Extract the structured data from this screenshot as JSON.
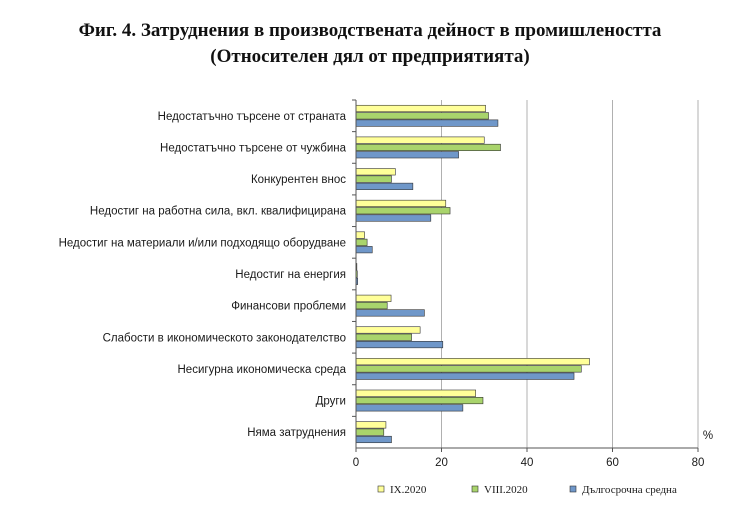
{
  "title": {
    "line1": "Фиг. 4. Затруднения в производствената дейност в промишлеността",
    "line2": "(Относителен дял от предприятията)"
  },
  "colors": {
    "s1": "#ffff99",
    "s2": "#a9d46c",
    "s3": "#6f97c9",
    "stroke": "#333333",
    "grid": "#b0b0b0"
  },
  "chart_data": {
    "type": "bar",
    "orientation": "horizontal",
    "title": "Фиг. 4. Затруднения в производствената дейност в промишлеността (Относителен дял от предприятията)",
    "categories": [
      "Недостатъчно търсене от страната",
      "Недостатъчно търсене от чужбина",
      "Конкурентен внос",
      "Недостиг на работна сила, вкл. квалифицирана",
      "Недостиг на материали и/или подходящо оборудване",
      "Недостиг на енергия",
      "Финансови проблеми",
      "Слабости в икономическото законодателство",
      "Несигурна икономическа среда",
      "Други",
      "Няма затруднения"
    ],
    "series": [
      {
        "name": "IX.2020",
        "values": [
          30.3,
          30.0,
          9.2,
          21.0,
          2.0,
          0.2,
          8.2,
          15.0,
          54.6,
          28.0,
          7.0
        ]
      },
      {
        "name": "VIII.2020",
        "values": [
          31.0,
          33.8,
          8.3,
          22.0,
          2.6,
          0.3,
          7.3,
          13.0,
          52.7,
          29.7,
          6.5
        ]
      },
      {
        "name": "Дългосрочна средна",
        "values": [
          33.2,
          24.0,
          13.3,
          17.5,
          3.8,
          0.4,
          16.0,
          20.3,
          51.0,
          25.0,
          8.3
        ]
      }
    ],
    "xlim": [
      0,
      80
    ],
    "xticks": [
      "0",
      "20",
      "40",
      "60",
      "80"
    ],
    "xunit": "%",
    "grid": true,
    "legend_position": "bottom"
  }
}
